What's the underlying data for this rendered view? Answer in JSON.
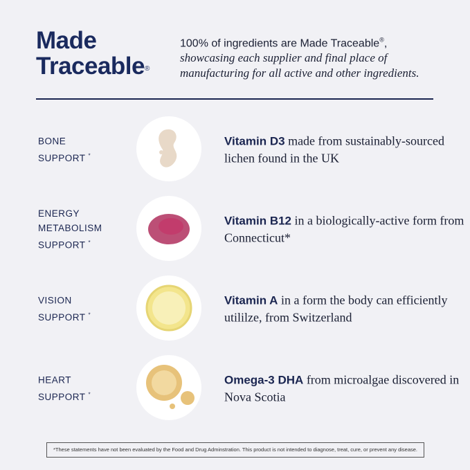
{
  "header": {
    "title_line1": "Made",
    "title_line2": "Traceable",
    "title_mark": "®",
    "intro_bold": "100% of ingredients are Made Traceable",
    "intro_mark": "®",
    "intro_comma": ",",
    "intro_italic": "showcasing each supplier and final place of manufacturing for all active and other ingredients."
  },
  "rows": [
    {
      "label_lines": [
        "BONE",
        "SUPPORT"
      ],
      "asterisk": "*",
      "icon": "cream-drop-icon",
      "name": "Vitamin D3",
      "text": " made from sustainably-sourced lichen found in the UK"
    },
    {
      "label_lines": [
        "ENERGY",
        "METABOLISM",
        "SUPPORT"
      ],
      "asterisk": "*",
      "icon": "pink-powder-icon",
      "name": "Vitamin B12",
      "text": " in a biologically-active form from Connecticut*"
    },
    {
      "label_lines": [
        "VISION",
        "SUPPORT"
      ],
      "asterisk": "*",
      "icon": "oil-dish-icon",
      "name": "Vitamin A",
      "text": " in a form the body can efficiently utililze, from Switzerland"
    },
    {
      "label_lines": [
        "HEART",
        "SUPPORT"
      ],
      "asterisk": "*",
      "icon": "oil-droplets-icon",
      "name": "Omega-3 DHA",
      "text": " from microalgae discovered in Nova Scotia"
    }
  ],
  "footer": "*These statements have not been evaluated by the Food and Drug Adminstration. This product is not intended to diagnose, treat, cure, or prevent any disease."
}
